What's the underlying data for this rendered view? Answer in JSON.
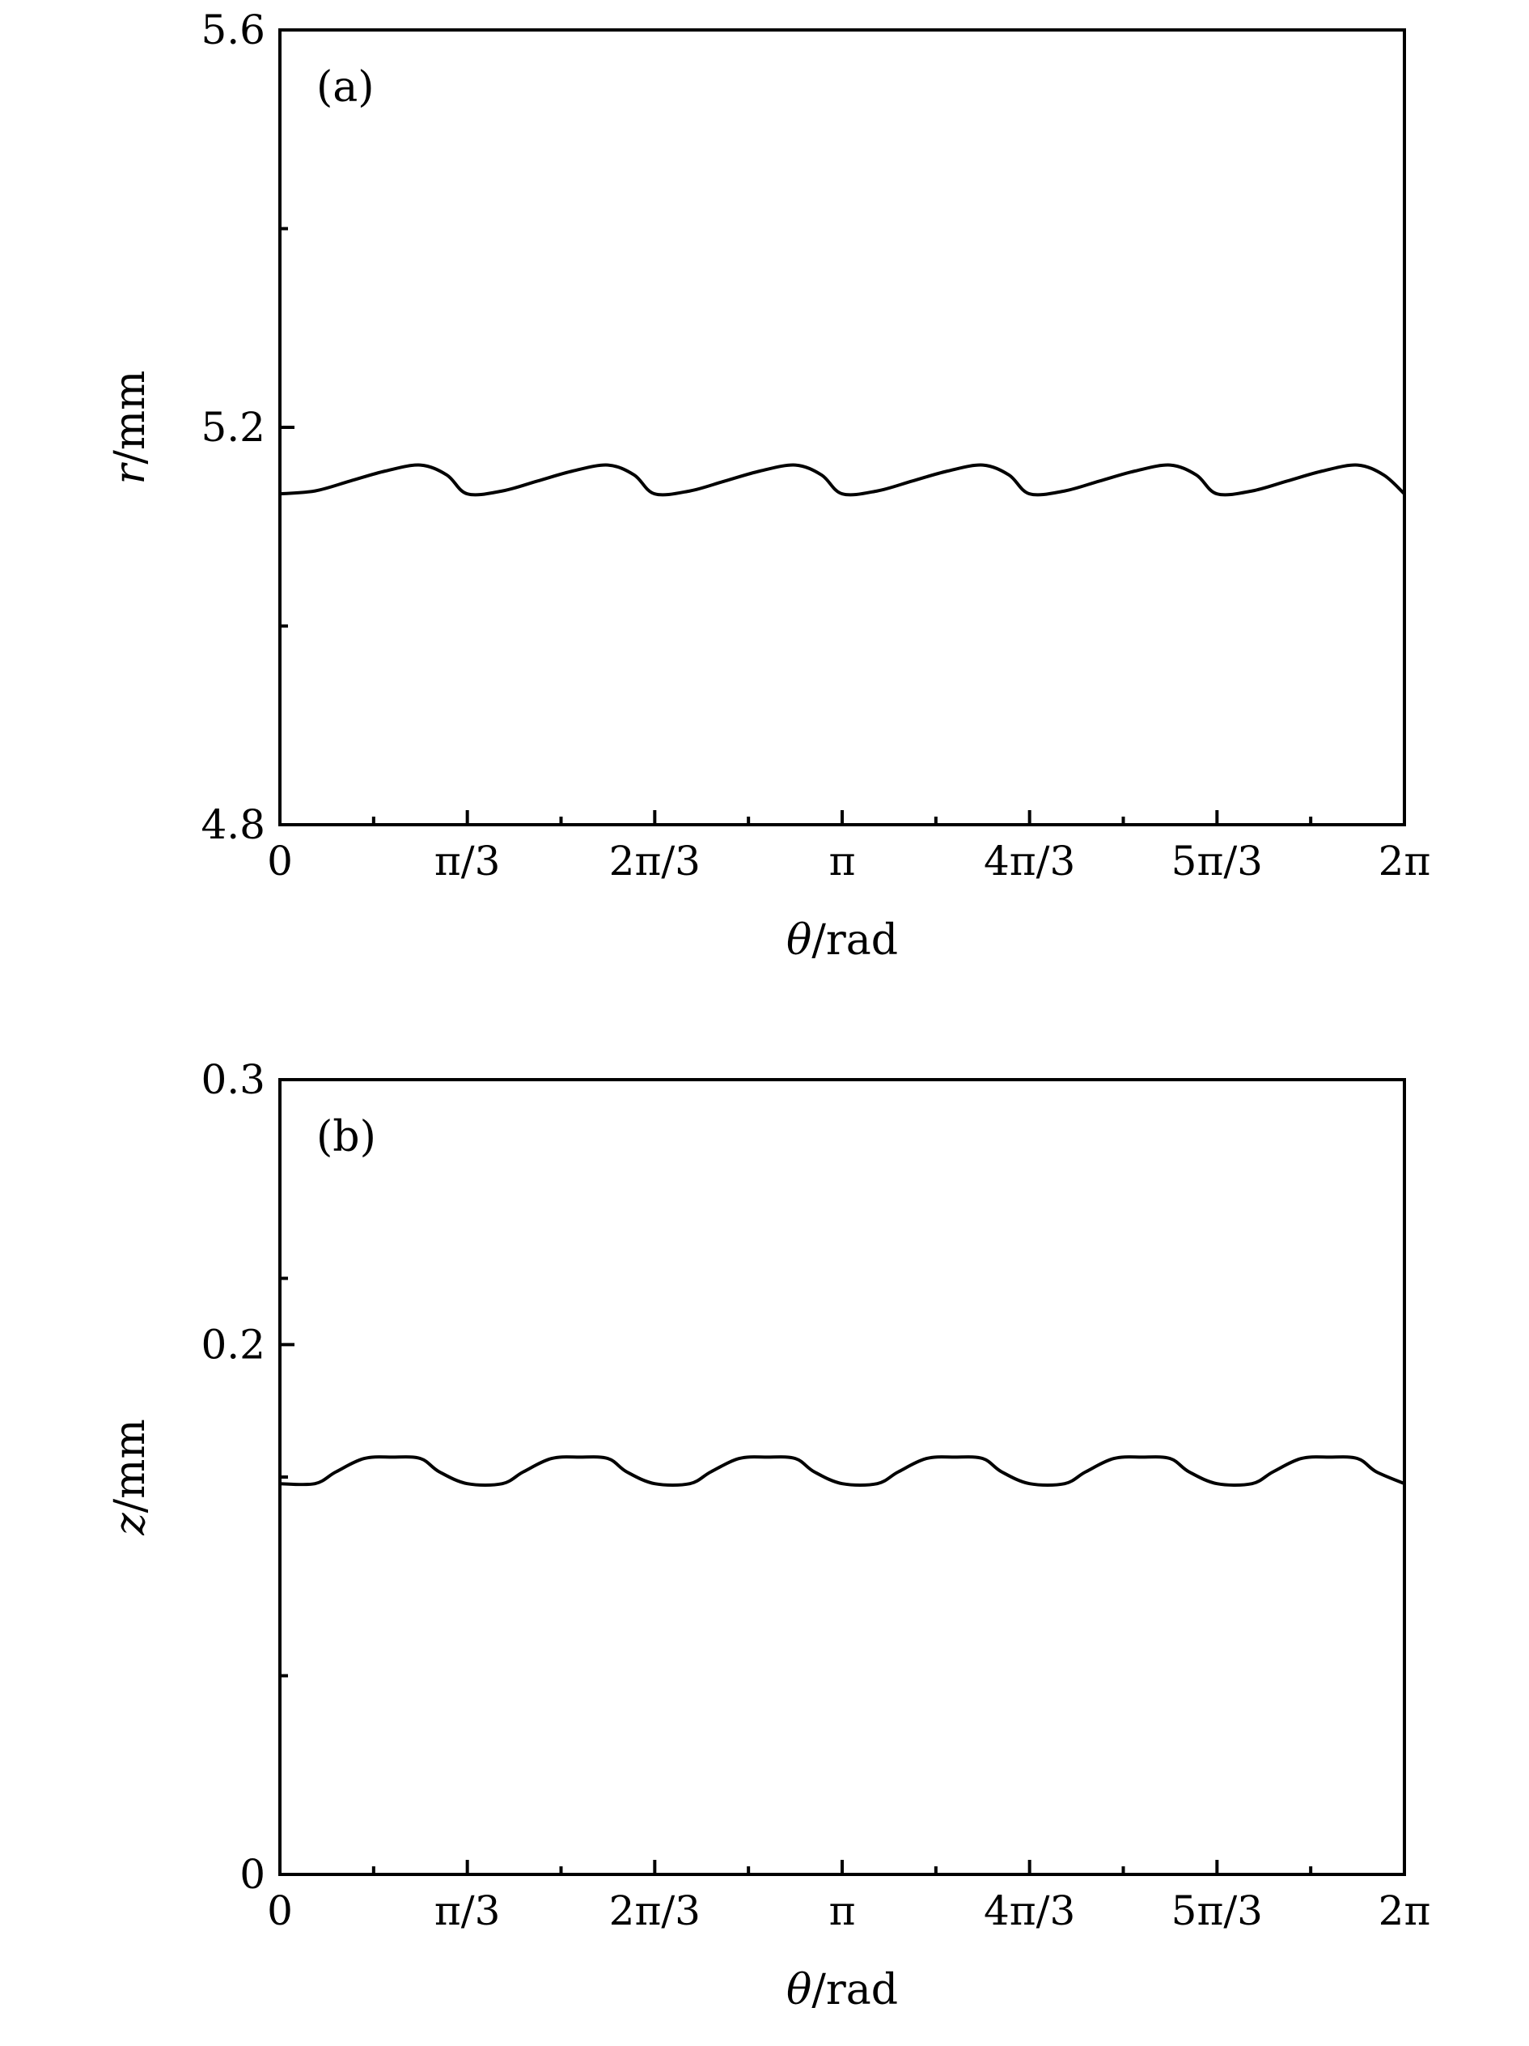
{
  "chart_data": [
    {
      "type": "line",
      "panel_label": "(a)",
      "xlabel": "θ/rad",
      "ylabel": "r/mm",
      "ylabel_var": "r",
      "ylabel_unit": "/mm",
      "xlim": [
        0,
        6.2832
      ],
      "ylim": [
        4.8,
        5.6
      ],
      "xticks": [
        {
          "value": 0,
          "label": "0"
        },
        {
          "value": 1.0472,
          "label": "π/3"
        },
        {
          "value": 2.0944,
          "label": "2π/3"
        },
        {
          "value": 3.1416,
          "label": "π"
        },
        {
          "value": 4.1888,
          "label": "4π/3"
        },
        {
          "value": 5.236,
          "label": "5π/3"
        },
        {
          "value": 6.2832,
          "label": "2π"
        }
      ],
      "yticks": [
        {
          "value": 4.8,
          "label": "4.8"
        },
        {
          "value": 5.2,
          "label": "5.2"
        },
        {
          "value": 5.6,
          "label": "5.6"
        }
      ],
      "grid": false,
      "series": [
        {
          "x": [
            0,
            0.196,
            0.393,
            0.589,
            0.785,
            0.933,
            1.047,
            1.243,
            1.44,
            1.636,
            1.833,
            1.98,
            2.094,
            2.291,
            2.487,
            2.683,
            2.88,
            3.027,
            3.142,
            3.338,
            3.534,
            3.731,
            3.927,
            4.074,
            4.189,
            4.385,
            4.581,
            4.778,
            4.974,
            5.121,
            5.236,
            5.432,
            5.629,
            5.825,
            6.021,
            6.168,
            6.283
          ],
          "y": [
            5.133,
            5.136,
            5.146,
            5.156,
            5.162,
            5.152,
            5.133,
            5.136,
            5.146,
            5.156,
            5.162,
            5.152,
            5.133,
            5.136,
            5.146,
            5.156,
            5.162,
            5.152,
            5.133,
            5.136,
            5.146,
            5.156,
            5.162,
            5.152,
            5.133,
            5.136,
            5.146,
            5.156,
            5.162,
            5.152,
            5.133,
            5.136,
            5.146,
            5.156,
            5.162,
            5.152,
            5.133
          ]
        }
      ]
    },
    {
      "type": "line",
      "panel_label": "(b)",
      "xlabel": "θ/rad",
      "ylabel": "z/mm",
      "ylabel_var": "z",
      "ylabel_unit": "/mm",
      "xlim": [
        0,
        6.2832
      ],
      "ylim": [
        0,
        0.3
      ],
      "xticks": [
        {
          "value": 0,
          "label": "0"
        },
        {
          "value": 1.0472,
          "label": "π/3"
        },
        {
          "value": 2.0944,
          "label": "2π/3"
        },
        {
          "value": 3.1416,
          "label": "π"
        },
        {
          "value": 4.1888,
          "label": "4π/3"
        },
        {
          "value": 5.236,
          "label": "5π/3"
        },
        {
          "value": 6.2832,
          "label": "2π"
        }
      ],
      "yticks": [
        {
          "value": 0,
          "label": "0"
        },
        {
          "value": 0.2,
          "label": "0.2"
        },
        {
          "value": 0.3,
          "label": "0.3"
        }
      ],
      "grid": false,
      "series": [
        {
          "x": [
            0,
            0.196,
            0.314,
            0.471,
            0.628,
            0.785,
            0.89,
            1.047,
            1.243,
            1.361,
            1.518,
            1.675,
            1.833,
            1.937,
            2.094,
            2.291,
            2.409,
            2.566,
            2.723,
            2.88,
            2.985,
            3.142,
            3.338,
            3.456,
            3.613,
            3.77,
            3.927,
            4.032,
            4.189,
            4.385,
            4.503,
            4.66,
            4.817,
            4.974,
            5.079,
            5.236,
            5.432,
            5.55,
            5.707,
            5.864,
            6.021,
            6.126,
            6.283
          ],
          "y": [
            0.1475,
            0.1475,
            0.152,
            0.157,
            0.1575,
            0.157,
            0.152,
            0.1475,
            0.1475,
            0.152,
            0.157,
            0.1575,
            0.157,
            0.152,
            0.1475,
            0.1475,
            0.152,
            0.157,
            0.1575,
            0.157,
            0.152,
            0.1475,
            0.1475,
            0.152,
            0.157,
            0.1575,
            0.157,
            0.152,
            0.1475,
            0.1475,
            0.152,
            0.157,
            0.1575,
            0.157,
            0.152,
            0.1475,
            0.1475,
            0.152,
            0.157,
            0.1575,
            0.157,
            0.152,
            0.1475
          ]
        }
      ]
    }
  ]
}
